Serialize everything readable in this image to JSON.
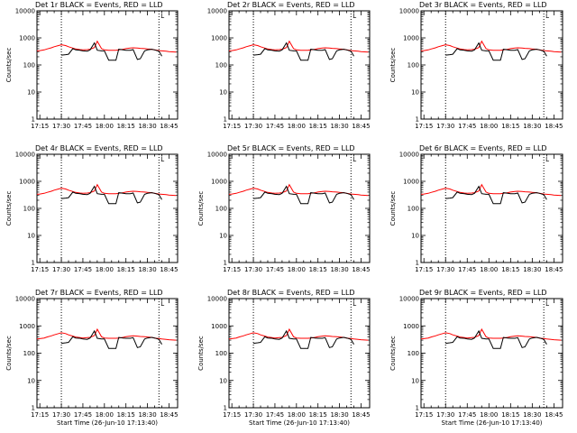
{
  "chart_data": [
    {
      "type": "line",
      "title": "Det 1r BLACK = Events, RED = LLD",
      "xlabel": "",
      "ylabel": "Counts/sec"
    },
    {
      "type": "line",
      "title": "Det 2r BLACK = Events, RED = LLD",
      "xlabel": "",
      "ylabel": ""
    },
    {
      "type": "line",
      "title": "Det 3r BLACK = Events, RED = LLD",
      "xlabel": "",
      "ylabel": "Counts/sec"
    },
    {
      "type": "line",
      "title": "Det 4r BLACK = Events, RED = LLD",
      "xlabel": "",
      "ylabel": "Counts/sec"
    },
    {
      "type": "line",
      "title": "Det 5r BLACK = Events, RED = LLD",
      "xlabel": "",
      "ylabel": "Counts/sec"
    },
    {
      "type": "line",
      "title": "Det 6r BLACK = Events, RED = LLD",
      "xlabel": "",
      "ylabel": "Counts/sec"
    },
    {
      "type": "line",
      "title": "Det 7r BLACK = Events, RED = LLD",
      "xlabel": "Start Time (26-Jun-10 17:13:40)",
      "ylabel": "Counts/sec"
    },
    {
      "type": "line",
      "title": "Det 8r BLACK = Events, RED = LLD",
      "xlabel": "Start Time (26-Jun-10 17:13:40)",
      "ylabel": "Counts/sec"
    },
    {
      "type": "line",
      "title": "Det 9r BLACK = Events, RED = LLD",
      "xlabel": "Start Time (26-Jun-10 17:13:40)",
      "ylabel": "Counts/sec"
    }
  ],
  "shared_axes": {
    "x_ticks": [
      "17:15",
      "17:30",
      "17:45",
      "18:00",
      "18:15",
      "18:30",
      "18:45"
    ],
    "y_scale": "log",
    "y_range": [
      1,
      10000
    ],
    "y_ticks": [
      "1",
      "10",
      "100",
      "1000",
      "10000"
    ],
    "vertical_markers": [
      "17:30",
      "18:38"
    ],
    "marker_label": "L"
  },
  "series": {
    "events": {
      "name": "BLACK = Events",
      "color": "#000000",
      "x": [
        "17:30",
        "17:33",
        "17:35",
        "17:38",
        "17:40",
        "17:43",
        "17:45",
        "17:48",
        "17:50",
        "17:53",
        "17:55",
        "17:58",
        "18:00",
        "18:03",
        "18:05",
        "18:08",
        "18:10",
        "18:13",
        "18:15",
        "18:18",
        "18:20",
        "18:23",
        "18:25",
        "18:28",
        "18:30",
        "18:33",
        "18:35",
        "18:38",
        "18:40"
      ],
      "y": [
        230,
        240,
        250,
        400,
        360,
        350,
        330,
        320,
        360,
        650,
        350,
        330,
        330,
        150,
        150,
        150,
        380,
        360,
        350,
        350,
        370,
        160,
        170,
        330,
        360,
        380,
        360,
        320,
        210
      ]
    },
    "lld": {
      "name": "RED = LLD",
      "color": "#ff0000",
      "x": [
        "17:13",
        "17:15",
        "17:18",
        "17:20",
        "17:23",
        "17:25",
        "17:28",
        "17:30",
        "17:33",
        "17:35",
        "17:38",
        "17:40",
        "17:43",
        "17:45",
        "17:48",
        "17:50",
        "17:53",
        "17:55",
        "17:58",
        "18:00",
        "18:03",
        "18:05",
        "18:08",
        "18:10",
        "18:13",
        "18:15",
        "18:18",
        "18:20",
        "18:23",
        "18:25",
        "18:28",
        "18:30",
        "18:33",
        "18:35",
        "18:38",
        "18:40",
        "18:43",
        "18:45",
        "18:50"
      ],
      "y": [
        330,
        340,
        360,
        390,
        430,
        470,
        520,
        560,
        520,
        470,
        420,
        390,
        370,
        360,
        370,
        380,
        440,
        750,
        400,
        360,
        350,
        350,
        350,
        360,
        380,
        400,
        420,
        430,
        420,
        410,
        400,
        390,
        380,
        360,
        340,
        330,
        320,
        310,
        300
      ]
    }
  }
}
